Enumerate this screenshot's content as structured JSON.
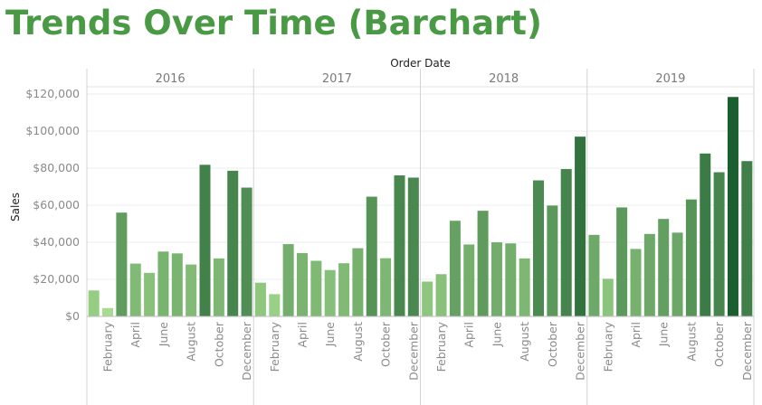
{
  "title": "Trends Over Time (Barchart)",
  "chart_data": {
    "type": "bar",
    "xlabel": "Order Date",
    "ylabel": "Sales",
    "ylim": [
      0,
      125000
    ],
    "yticks": [
      0,
      20000,
      40000,
      60000,
      80000,
      100000,
      120000
    ],
    "ytick_labels": [
      "$0",
      "$20,000",
      "$40,000",
      "$60,000",
      "$80,000",
      "$100,000",
      "$120,000"
    ],
    "grid": true,
    "color_encoding": "sequential green by value",
    "colors": {
      "low": "#a6dc8f",
      "high": "#1b5e2f",
      "title": "#4a9a45"
    },
    "month_tick_labels": [
      "February",
      "April",
      "June",
      "August",
      "October",
      "December"
    ],
    "years": [
      {
        "year": "2016",
        "values": [
          14000,
          4500,
          56000,
          28500,
          23500,
          35000,
          34000,
          28000,
          81800,
          31300,
          78600,
          69500
        ]
      },
      {
        "year": "2017",
        "values": [
          18200,
          12000,
          39000,
          34200,
          30000,
          25000,
          28700,
          36800,
          64600,
          31400,
          76100,
          74900
        ]
      },
      {
        "year": "2018",
        "values": [
          18800,
          22800,
          51600,
          38800,
          57000,
          40000,
          39400,
          31300,
          73400,
          59800,
          79500,
          97000
        ]
      },
      {
        "year": "2019",
        "values": [
          44000,
          20300,
          58800,
          36400,
          44500,
          52600,
          45200,
          63100,
          87900,
          77800,
          118400,
          83800
        ]
      }
    ]
  }
}
